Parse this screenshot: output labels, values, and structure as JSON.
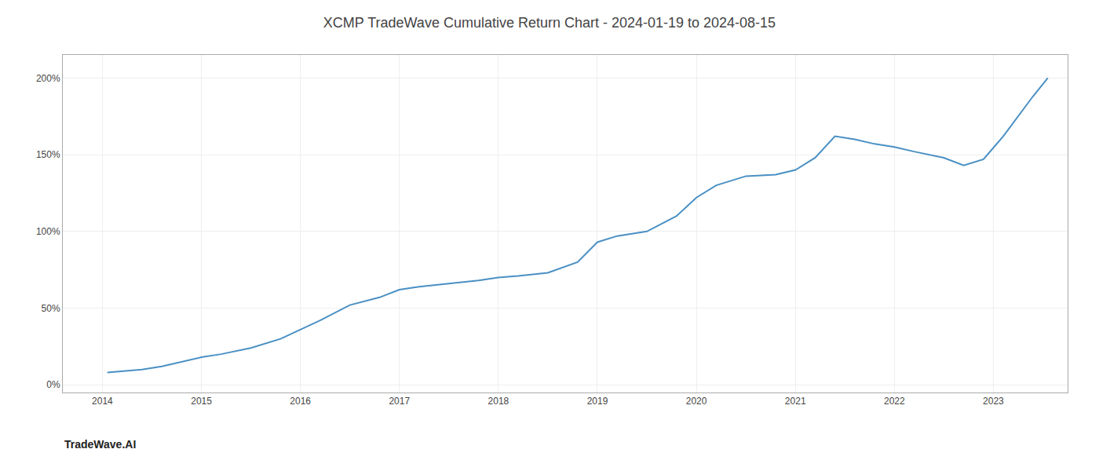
{
  "chart_data": {
    "type": "line",
    "title": "XCMP TradeWave Cumulative Return Chart - 2024-01-19 to 2024-08-15",
    "annotations": [
      "TradeWave.AI"
    ],
    "color": "#4a90c4",
    "x": [
      2014.05,
      2014.2,
      2014.4,
      2014.6,
      2014.8,
      2015.0,
      2015.2,
      2015.5,
      2015.8,
      2016.0,
      2016.2,
      2016.5,
      2016.8,
      2017.0,
      2017.2,
      2017.5,
      2017.8,
      2018.0,
      2018.2,
      2018.5,
      2018.8,
      2019.0,
      2019.2,
      2019.5,
      2019.8,
      2020.0,
      2020.2,
      2020.5,
      2020.8,
      2021.0,
      2021.2,
      2021.4,
      2021.6,
      2021.8,
      2022.0,
      2022.2,
      2022.5,
      2022.7,
      2022.9,
      2023.1,
      2023.4,
      2023.55
    ],
    "values": [
      8,
      9,
      10,
      12,
      15,
      18,
      20,
      24,
      30,
      36,
      42,
      52,
      57,
      62,
      64,
      66,
      68,
      70,
      71,
      73,
      80,
      93,
      97,
      100,
      110,
      122,
      130,
      136,
      137,
      140,
      148,
      162,
      160,
      157,
      155,
      152,
      148,
      143,
      147,
      162,
      188,
      200
    ],
    "xlim": [
      2013.6,
      2023.75
    ],
    "xticks": [
      2014,
      2015,
      2016,
      2017,
      2018,
      2019,
      2020,
      2021,
      2022,
      2023
    ],
    "ylim": [
      -5,
      215
    ],
    "yticks": [
      {
        "value": 0,
        "label": "0%"
      },
      {
        "value": 50,
        "label": "50%"
      },
      {
        "value": 100,
        "label": "100%"
      },
      {
        "value": 150,
        "label": "150%"
      },
      {
        "value": 200,
        "label": "200%"
      }
    ],
    "grid": true
  }
}
